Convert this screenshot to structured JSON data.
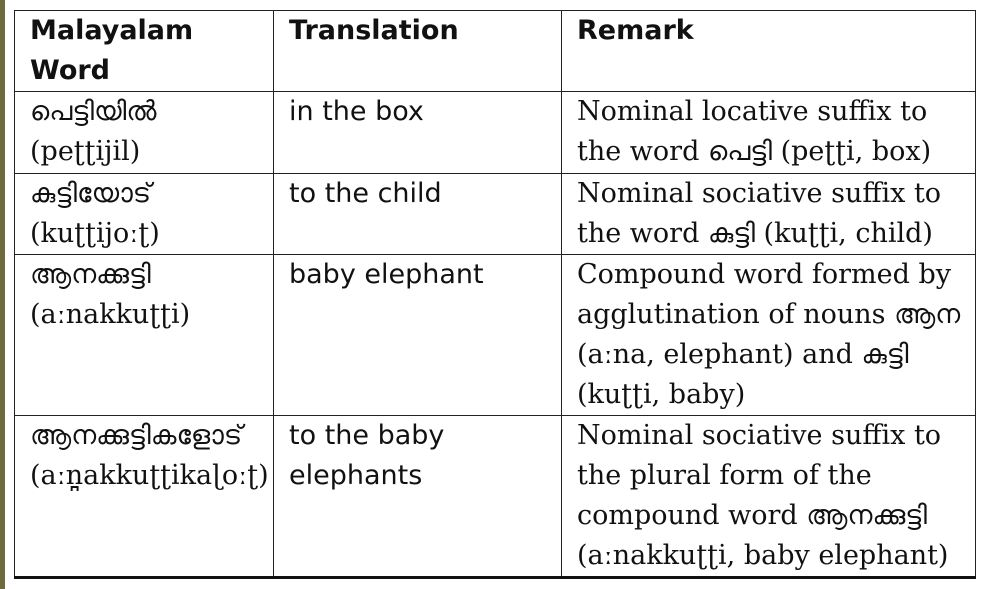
{
  "table": {
    "headers": [
      "Malayalam Word",
      "Translation",
      "Remark"
    ],
    "rows": [
      {
        "word": "പെട്ടിയിൽ",
        "translit": "(peʈʈijil)",
        "translation": "in the box",
        "remark": "Nominal locative suffix to the word പെട്ടി (peʈʈi, box)"
      },
      {
        "word": "കുട്ടിയോട്",
        "translit": "(kuʈʈijoːʈ)",
        "translation": "to the child",
        "remark": "Nominal sociative suffix to the word കുട്ടി (kuʈʈi, child)"
      },
      {
        "word": "ആനക്കുട്ടി",
        "translit": "(aːnakkuʈʈi)",
        "translation": "baby elephant",
        "remark": "Compound word formed by agglutination of nouns ആന (aːna, elephant) and കുട്ടി (kuʈʈi, baby)"
      },
      {
        "word": "ആനക്കുട്ടികളോട്",
        "translit": "(aːn̪akkuʈʈikaɭoːʈ)",
        "translation": "to the baby elephants",
        "remark": "Nominal sociative suffix to the plural form of the compound word ആനക്കുട്ടി (aːnakkuʈʈi, baby elephant)"
      }
    ]
  }
}
